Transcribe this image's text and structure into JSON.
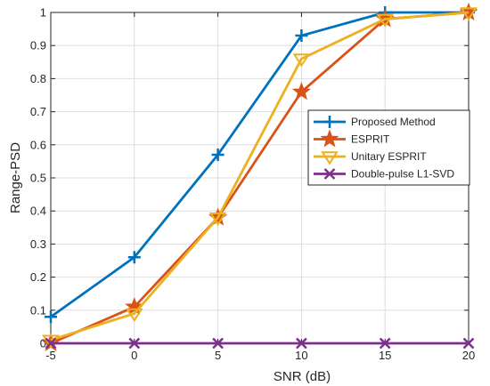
{
  "chart_data": {
    "type": "line",
    "title": "",
    "xlabel": "SNR (dB)",
    "ylabel": "Range-PSD",
    "xlim": [
      -5,
      20
    ],
    "ylim": [
      0,
      1
    ],
    "x_ticks": [
      "-5",
      "0",
      "5",
      "10",
      "15",
      "20"
    ],
    "y_ticks": [
      "0",
      "0.1",
      "0.2",
      "0.3",
      "0.4",
      "0.5",
      "0.6",
      "0.7",
      "0.8",
      "0.9",
      "1"
    ],
    "grid": true,
    "legend_position": "right-center",
    "x": [
      -5,
      0,
      5,
      10,
      15,
      20
    ],
    "series": [
      {
        "name": "Proposed Method",
        "values": [
          0.08,
          0.26,
          0.57,
          0.93,
          1.0,
          1.0
        ],
        "color": "#0072BD",
        "marker": "plus"
      },
      {
        "name": "ESPRIT",
        "values": [
          0.0,
          0.11,
          0.38,
          0.76,
          0.98,
          1.0
        ],
        "color": "#D95319",
        "marker": "star"
      },
      {
        "name": "Unitary ESPRIT",
        "values": [
          0.01,
          0.09,
          0.38,
          0.86,
          0.98,
          1.0
        ],
        "color": "#EDB120",
        "marker": "triangle-down"
      },
      {
        "name": "Double-pulse L1-SVD",
        "values": [
          0.0,
          0.0,
          0.0,
          0.0,
          0.0,
          0.0
        ],
        "color": "#7E2F8E",
        "marker": "x"
      }
    ]
  }
}
